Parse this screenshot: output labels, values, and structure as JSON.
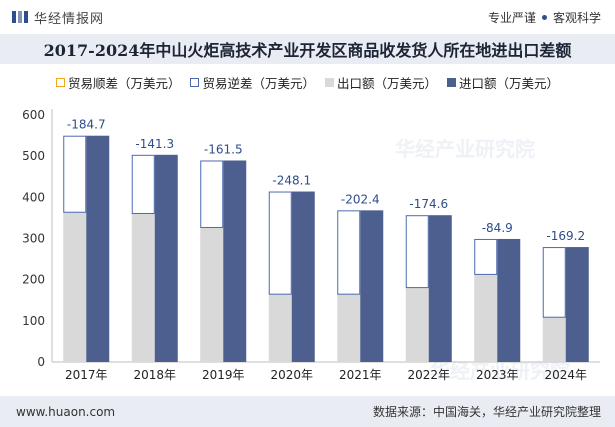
{
  "header": {
    "brand_name": "华经情报网",
    "right_text_1": "专业严谨",
    "right_text_2": "客观科学"
  },
  "watermark": "华经产业研究院",
  "footer": {
    "website": "www.huaon.com",
    "source": "数据来源：中国海关，华经产业研究院整理"
  },
  "colors": {
    "import": "#4c5f8e",
    "export": "#d9d9d9",
    "surplus_outline": "#f0a81c",
    "deficit_outline": "#4c6ab2",
    "title_bg": "#e9ecf2",
    "brand": "#2e4f8e"
  },
  "chart_data": {
    "type": "bar",
    "title": "2017-2024年中山火炬高技术产业开发区商品收发货人所在地进出口差额",
    "categories": [
      "2017年",
      "2018年",
      "2019年",
      "2020年",
      "2021年",
      "2022年",
      "2023年",
      "2024年"
    ],
    "series": [
      {
        "name": "贸易顺差（万美元）",
        "values": [
          null,
          null,
          null,
          null,
          null,
          null,
          null,
          null
        ]
      },
      {
        "name": "贸易逆差（万美元）",
        "values": [
          -184.7,
          -141.3,
          -161.5,
          -248.1,
          -202.4,
          -174.6,
          -84.9,
          -169.2
        ]
      },
      {
        "name": "出口额（万美元）",
        "values": [
          365,
          362,
          328,
          166,
          166,
          182,
          214,
          110
        ]
      },
      {
        "name": "进口额（万美元）",
        "values": [
          549.7,
          503.3,
          489.5,
          414.1,
          368.4,
          356.6,
          298.9,
          279.2
        ]
      }
    ],
    "data_labels": [
      "-184.7",
      "-141.3",
      "-161.5",
      "-248.1",
      "-202.4",
      "-174.6",
      "-84.9",
      "-169.2"
    ],
    "yticks": [
      "0",
      "100",
      "200",
      "300",
      "400",
      "500",
      "600"
    ],
    "ylim": [
      0,
      600
    ],
    "grid": false,
    "legend_position": "top"
  }
}
